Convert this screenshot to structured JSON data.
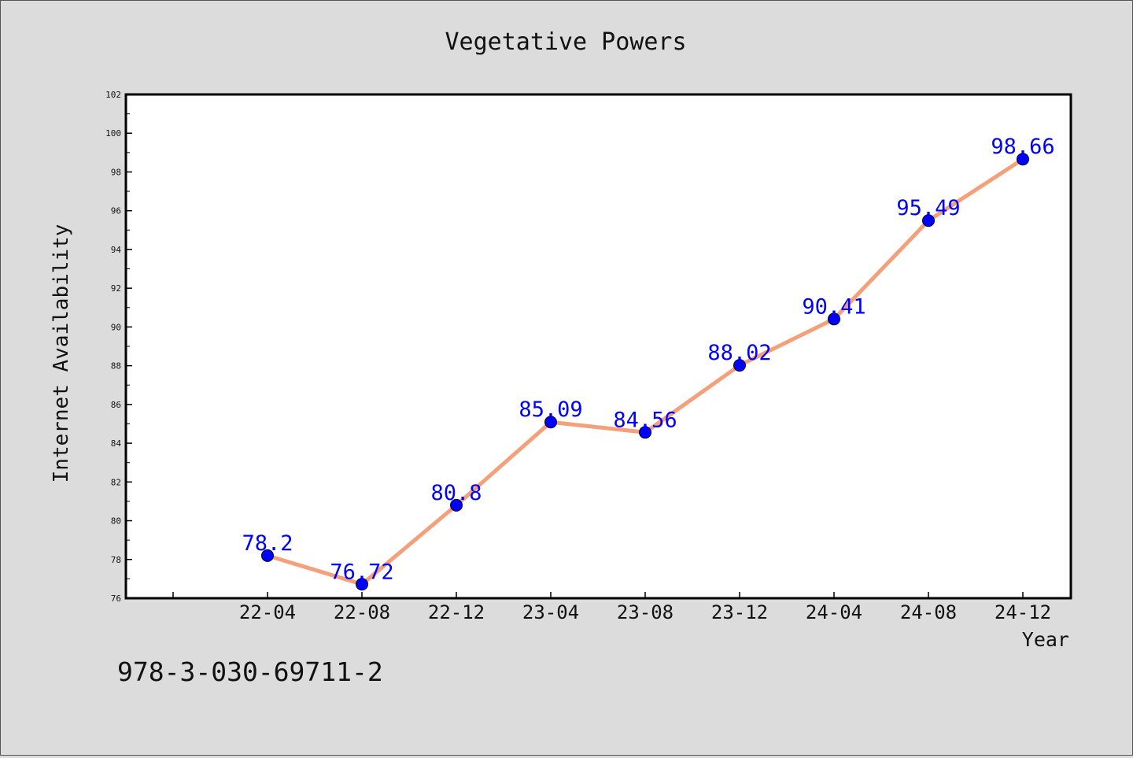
{
  "chart_data": {
    "type": "line",
    "title": "Vegetative Powers",
    "xlabel": "Year",
    "ylabel": "Internet Availability",
    "categories": [
      "22-04",
      "22-08",
      "22-12",
      "23-04",
      "23-08",
      "23-12",
      "24-04",
      "24-08",
      "24-12"
    ],
    "values": [
      78.2,
      76.72,
      80.8,
      85.09,
      84.56,
      88.02,
      90.41,
      95.49,
      98.66
    ],
    "data_labels": [
      "78.2",
      "76.72",
      "80.8",
      "85.09",
      "84.56",
      "88.02",
      "90.41",
      "95.49",
      "98.66"
    ],
    "ylim": [
      76,
      102
    ],
    "yticks": [
      "76",
      "78",
      "80",
      "82",
      "84",
      "86",
      "88",
      "90",
      "92",
      "94",
      "96",
      "98",
      "100",
      "102"
    ],
    "grid": false,
    "legend": "none",
    "colors": {
      "line": "#f4a07a",
      "marker": "#0000ff",
      "label": "#0000ff",
      "background": "#dcdcdc",
      "plot_background": "#ffffff"
    }
  },
  "footer": {
    "isbn": "978-3-030-69711-2"
  }
}
